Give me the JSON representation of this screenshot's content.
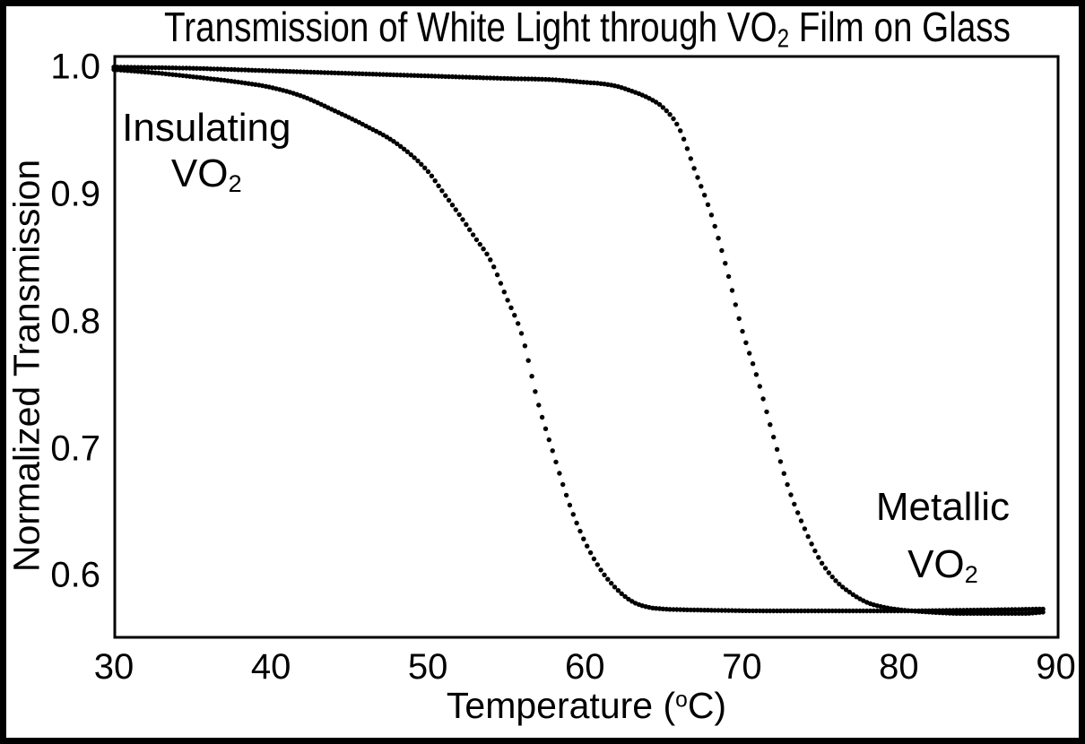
{
  "figure": {
    "background": "#ffffff",
    "foreground": "#000000"
  },
  "chart_data": {
    "type": "scatter",
    "title": {
      "pre": "Transmission of White Light through VO",
      "sub": "2",
      "post": " Film on Glass"
    },
    "xlabel": {
      "pre": "Temperature (",
      "sup": "o",
      "post": "C)"
    },
    "ylabel": "Normalized Transmission",
    "xlim": [
      30,
      90.2
    ],
    "ylim": [
      0.551,
      1.009
    ],
    "x_ticks": [
      {
        "label": "30",
        "value": 30
      },
      {
        "label": "40",
        "value": 40
      },
      {
        "label": "50",
        "value": 50
      },
      {
        "label": "60",
        "value": 60
      },
      {
        "label": "70",
        "value": 70
      },
      {
        "label": "80",
        "value": 80
      },
      {
        "label": "90",
        "value": 90
      }
    ],
    "y_ticks": [
      {
        "label": "1.0",
        "value": 1.0
      },
      {
        "label": "0.9",
        "value": 0.9
      },
      {
        "label": "0.8",
        "value": 0.8
      },
      {
        "label": "0.7",
        "value": 0.7
      },
      {
        "label": "0.6",
        "value": 0.6
      }
    ],
    "grid": false,
    "tick_marks": false,
    "legend": "none",
    "marker": "filled-dot",
    "series": [
      {
        "name": "cooling_branch_insulating_transition",
        "transition_midpoint_C": 56.1,
        "t": [
          30,
          33,
          36,
          38,
          40,
          42,
          44,
          46,
          48,
          50,
          51,
          52,
          53,
          54,
          55,
          56,
          57,
          58,
          59,
          60,
          61,
          62,
          63,
          64,
          65,
          66,
          68,
          72,
          76,
          80,
          84,
          87,
          89.2
        ],
        "v": [
          0.998,
          0.995,
          0.991,
          0.988,
          0.984,
          0.977,
          0.966,
          0.954,
          0.94,
          0.918,
          0.901,
          0.884,
          0.866,
          0.848,
          0.819,
          0.789,
          0.737,
          0.696,
          0.657,
          0.627,
          0.605,
          0.59,
          0.58,
          0.5755,
          0.574,
          0.5735,
          0.573,
          0.5725,
          0.5725,
          0.5725,
          0.573,
          0.5735,
          0.574
        ]
      },
      {
        "name": "heating_branch_metallic_transition",
        "transition_midpoint_C": 70.2,
        "t": [
          30,
          35,
          40,
          45,
          50,
          55,
          58,
          60,
          61,
          62,
          63,
          64,
          65,
          66,
          67,
          68,
          69,
          70,
          71,
          72,
          73,
          74,
          75,
          76,
          77,
          78,
          79,
          80,
          82,
          84,
          86,
          88,
          89.2
        ],
        "v": [
          1.0,
          0.999,
          0.997,
          0.995,
          0.993,
          0.991,
          0.99,
          0.988,
          0.987,
          0.985,
          0.981,
          0.976,
          0.968,
          0.952,
          0.919,
          0.886,
          0.843,
          0.794,
          0.755,
          0.71,
          0.668,
          0.637,
          0.612,
          0.596,
          0.586,
          0.579,
          0.5755,
          0.5735,
          0.5715,
          0.5705,
          0.5705,
          0.5705,
          0.5715
        ]
      }
    ],
    "annotations": [
      {
        "line1": "Insulating",
        "line2_pre": "VO",
        "line2_sub": "2",
        "t": 35.9,
        "v_line1": 0.952,
        "v_line2": 0.915
      },
      {
        "line1": "Metallic",
        "line2_pre": "VO",
        "line2_sub": "2",
        "t": 82.8,
        "v_line1": 0.654,
        "v_line2": 0.608
      }
    ],
    "layout_hints": {
      "point_step_C": 0.22,
      "marker_diameter_px": 5.4,
      "dot_color": "#000000",
      "plot_border_px": 3
    }
  }
}
